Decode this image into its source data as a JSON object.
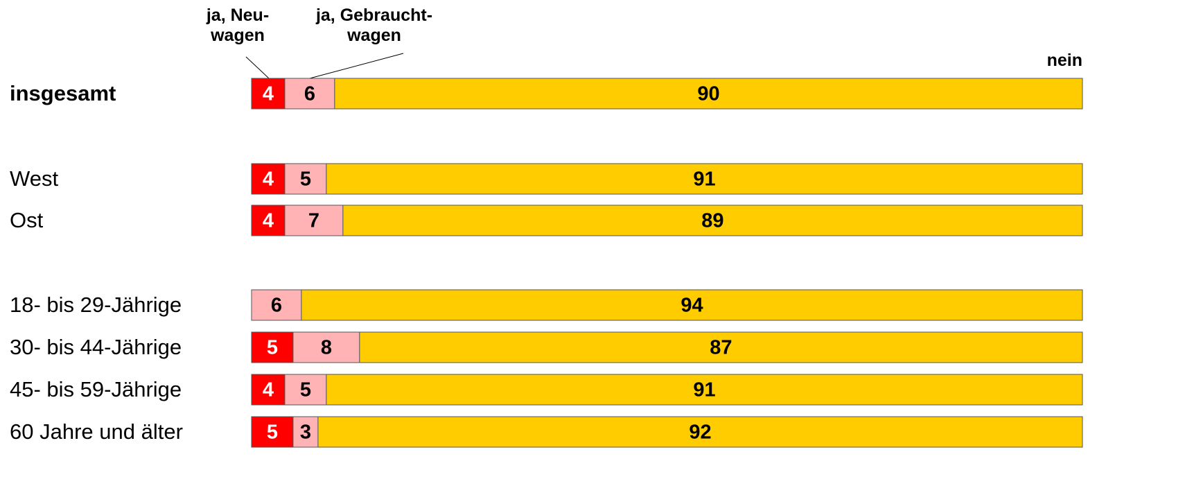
{
  "chart_data": {
    "type": "stacked-bar",
    "orientation": "horizontal",
    "categories": [
      "insgesamt",
      "West",
      "Ost",
      "18- bis 29-Jährige",
      "30- bis 44-Jährige",
      "45- bis 59-Jährige",
      "60 Jahre und älter"
    ],
    "series": [
      {
        "name": "ja, Neu-\nwagen",
        "color": "#ff0000",
        "values": [
          4,
          4,
          4,
          null,
          5,
          4,
          5
        ]
      },
      {
        "name": "ja, Gebraucht-\nwagen",
        "color": "#ffb3b5",
        "values": [
          6,
          5,
          7,
          6,
          8,
          5,
          3
        ]
      },
      {
        "name": "nein",
        "color": "#ffcc00",
        "values": [
          90,
          91,
          89,
          94,
          87,
          91,
          92
        ]
      }
    ],
    "xlim": [
      0,
      100
    ]
  }
}
